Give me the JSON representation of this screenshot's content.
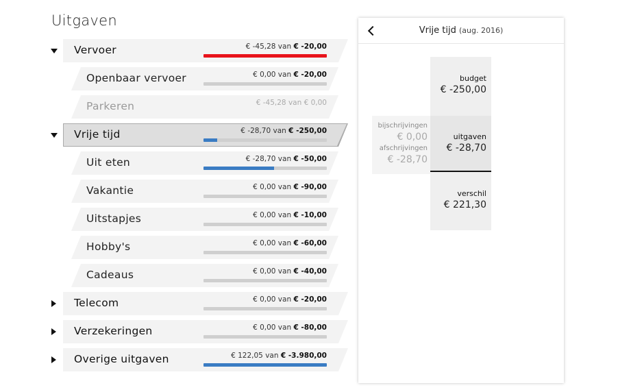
{
  "page": {
    "title": "Uitgaven"
  },
  "colors": {
    "over_budget": "#e8131b",
    "progress": "#3a7cc3",
    "track": "#cfcfcf",
    "row_bg": "#f3f3f3",
    "row_selected": "#dedede"
  },
  "categories": [
    {
      "label": "Vervoer",
      "level": "main",
      "expanded": true,
      "spent": "€ -45,28",
      "of": "van",
      "budget": "€ -20,00",
      "progress": 1.0,
      "fill_color": "#e8131b"
    },
    {
      "label": "Openbaar vervoer",
      "level": "sub",
      "spent": "€ 0,00",
      "of": "van",
      "budget": "€ -20,00",
      "progress": 0.0,
      "fill_color": "#3a7cc3"
    },
    {
      "label": "Parkeren",
      "level": "sub",
      "muted": true,
      "spent": "€ -45,28",
      "of": "van",
      "budget": "€ 0,00",
      "progress": null,
      "fill_color": null
    },
    {
      "label": "Vrije tijd",
      "level": "main",
      "expanded": true,
      "selected": true,
      "spent": "€ -28,70",
      "of": "van",
      "budget": "€ -250,00",
      "progress": 0.11,
      "fill_color": "#3a7cc3"
    },
    {
      "label": "Uit eten",
      "level": "sub",
      "spent": "€ -28,70",
      "of": "van",
      "budget": "€ -50,00",
      "progress": 0.57,
      "fill_color": "#3a7cc3"
    },
    {
      "label": "Vakantie",
      "level": "sub",
      "spent": "€ 0,00",
      "of": "van",
      "budget": "€ -90,00",
      "progress": 0.0,
      "fill_color": "#3a7cc3"
    },
    {
      "label": "Uitstapjes",
      "level": "sub",
      "spent": "€ 0,00",
      "of": "van",
      "budget": "€ -10,00",
      "progress": 0.0,
      "fill_color": "#3a7cc3"
    },
    {
      "label": "Hobby's",
      "level": "sub",
      "spent": "€ 0,00",
      "of": "van",
      "budget": "€ -60,00",
      "progress": 0.0,
      "fill_color": "#3a7cc3"
    },
    {
      "label": "Cadeaus",
      "level": "sub",
      "spent": "€ 0,00",
      "of": "van",
      "budget": "€ -40,00",
      "progress": 0.0,
      "fill_color": "#3a7cc3"
    },
    {
      "label": "Telecom",
      "level": "main",
      "expanded": false,
      "spent": "€ 0,00",
      "of": "van",
      "budget": "€ -20,00",
      "progress": 0.0,
      "fill_color": "#3a7cc3"
    },
    {
      "label": "Verzekeringen",
      "level": "main",
      "expanded": false,
      "spent": "€ 0,00",
      "of": "van",
      "budget": "€ -80,00",
      "progress": 0.0,
      "fill_color": "#3a7cc3"
    },
    {
      "label": "Overige uitgaven",
      "level": "main",
      "expanded": false,
      "spent": "€ 122,05",
      "of": "van",
      "budget": "€ -3.980,00",
      "progress": 1.0,
      "fill_color": "#3a7cc3"
    }
  ],
  "detail": {
    "title": "Vrije tijd",
    "period": "(aug. 2016)",
    "budget_label": "budget",
    "budget_value": "€ -250,00",
    "spent_label": "uitgaven",
    "spent_value": "€ -28,70",
    "diff_label": "verschil",
    "diff_value": "€ 221,30",
    "credits_label": "bijschrijvingen",
    "credits_value": "€ 0,00",
    "debits_label": "afschrijvingen",
    "debits_value": "€ -28,70"
  }
}
